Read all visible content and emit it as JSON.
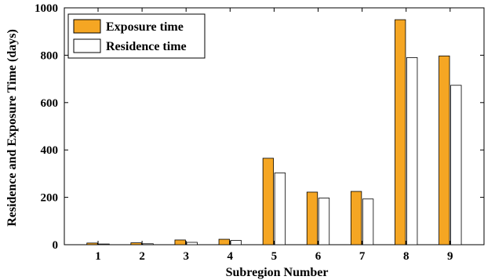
{
  "chart_data": {
    "type": "bar",
    "title": "",
    "xlabel": "Subregion Number",
    "ylabel": "Residence and Exposure Time (days)",
    "categories": [
      "1",
      "2",
      "3",
      "4",
      "5",
      "6",
      "7",
      "8",
      "9"
    ],
    "series": [
      {
        "name": "Exposure time",
        "color": "#f5a623",
        "values": [
          7,
          8,
          20,
          23,
          365,
          222,
          225,
          950,
          797
        ]
      },
      {
        "name": "Residence time",
        "color": "#ffffff",
        "values": [
          3,
          4,
          10,
          18,
          303,
          197,
          193,
          790,
          673
        ]
      }
    ],
    "ylim": [
      0,
      1000
    ],
    "yticks": [
      "0",
      "200",
      "400",
      "600",
      "800",
      "1000"
    ],
    "grid": false,
    "legend_position": "top-left"
  }
}
